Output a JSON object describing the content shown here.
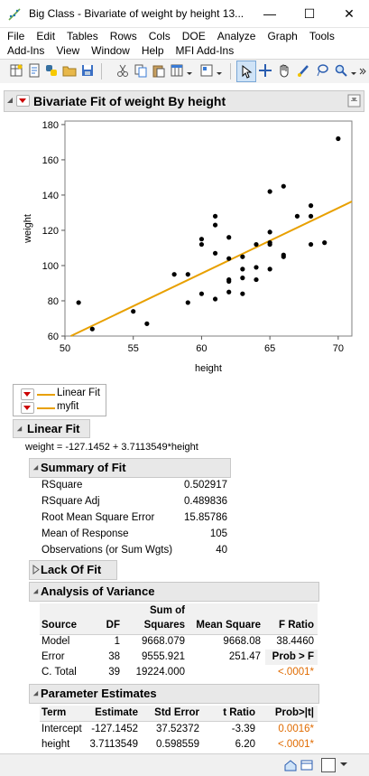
{
  "window": {
    "title": "Big Class - Bivariate of weight by height 13...",
    "minimize": "—",
    "maximize": "☐",
    "close": "✕"
  },
  "menu": {
    "row1": [
      "File",
      "Edit",
      "Tables",
      "Rows",
      "Cols",
      "DOE",
      "Analyze",
      "Graph",
      "Tools"
    ],
    "row2": [
      "Add-Ins",
      "View",
      "Window",
      "Help",
      "MFI Add-Ins"
    ]
  },
  "report": {
    "title": "Bivariate Fit of weight By height",
    "legend": [
      {
        "label": "Linear Fit"
      },
      {
        "label": "myfit"
      }
    ],
    "linear_fit": {
      "header": "Linear Fit",
      "equation": "weight = -127.1452 + 3.7113549*height"
    },
    "summary_of_fit": {
      "header": "Summary of Fit",
      "rows": [
        {
          "label": "RSquare",
          "value": "0.502917"
        },
        {
          "label": "RSquare Adj",
          "value": "0.489836"
        },
        {
          "label": "Root Mean Square Error",
          "value": "15.85786"
        },
        {
          "label": "Mean of Response",
          "value": "105"
        },
        {
          "label": "Observations (or Sum Wgts)",
          "value": "40"
        }
      ]
    },
    "lack_of_fit": {
      "header": "Lack Of Fit"
    },
    "anova": {
      "header": "Analysis of Variance",
      "col_sum_top": "Sum of",
      "cols": [
        "Source",
        "DF",
        "Squares",
        "Mean Square",
        "F Ratio"
      ],
      "rows": [
        {
          "source": "Model",
          "df": "1",
          "ss": "9668.079",
          "ms": "9668.08",
          "f": "38.4460"
        },
        {
          "source": "Error",
          "df": "38",
          "ss": "9555.921",
          "ms": "251.47",
          "f": "Prob > F"
        },
        {
          "source": "C. Total",
          "df": "39",
          "ss": "19224.000",
          "ms": "",
          "f": "<.0001*"
        }
      ]
    },
    "parameter_estimates": {
      "header": "Parameter Estimates",
      "cols": [
        "Term",
        "Estimate",
        "Std Error",
        "t Ratio",
        "Prob>|t|"
      ],
      "rows": [
        {
          "term": "Intercept",
          "estimate": "-127.1452",
          "se": "37.52372",
          "t": "-3.39",
          "p": "0.0016*"
        },
        {
          "term": "height",
          "estimate": "3.7113549",
          "se": "0.598559",
          "t": "6.20",
          "p": "<.0001*"
        }
      ]
    }
  },
  "colors": {
    "fit_line": "#e8a000",
    "points": "#000000",
    "red_triangle": "#cc0000",
    "pvalue": "#e06b00"
  },
  "chart_data": {
    "type": "scatter",
    "title": "",
    "xlabel": "height",
    "ylabel": "weight",
    "xlim": [
      50,
      71
    ],
    "ylim": [
      60,
      182
    ],
    "xticks": [
      50,
      55,
      60,
      65,
      70
    ],
    "yticks": [
      60,
      80,
      100,
      120,
      140,
      160,
      180
    ],
    "grid": false,
    "points": [
      [
        51,
        79
      ],
      [
        52,
        64
      ],
      [
        55,
        74
      ],
      [
        56,
        67
      ],
      [
        58,
        95
      ],
      [
        59,
        95
      ],
      [
        59,
        79
      ],
      [
        60,
        115
      ],
      [
        60,
        112
      ],
      [
        60,
        84
      ],
      [
        61,
        128
      ],
      [
        61,
        123
      ],
      [
        61,
        107
      ],
      [
        61,
        81
      ],
      [
        62,
        116
      ],
      [
        62,
        104
      ],
      [
        62,
        92
      ],
      [
        62,
        91
      ],
      [
        62,
        85
      ],
      [
        63,
        105
      ],
      [
        63,
        98
      ],
      [
        63,
        93
      ],
      [
        63,
        84
      ],
      [
        64,
        112
      ],
      [
        64,
        99
      ],
      [
        64,
        92
      ],
      [
        65,
        142
      ],
      [
        65,
        119
      ],
      [
        65,
        113
      ],
      [
        65,
        112
      ],
      [
        65,
        98
      ],
      [
        66,
        145
      ],
      [
        66,
        106
      ],
      [
        66,
        105
      ],
      [
        67,
        128
      ],
      [
        68,
        134
      ],
      [
        68,
        128
      ],
      [
        68,
        112
      ],
      [
        69,
        113
      ],
      [
        70,
        172
      ]
    ],
    "fit": {
      "intercept": -127.1452,
      "slope": 3.7113549
    }
  }
}
